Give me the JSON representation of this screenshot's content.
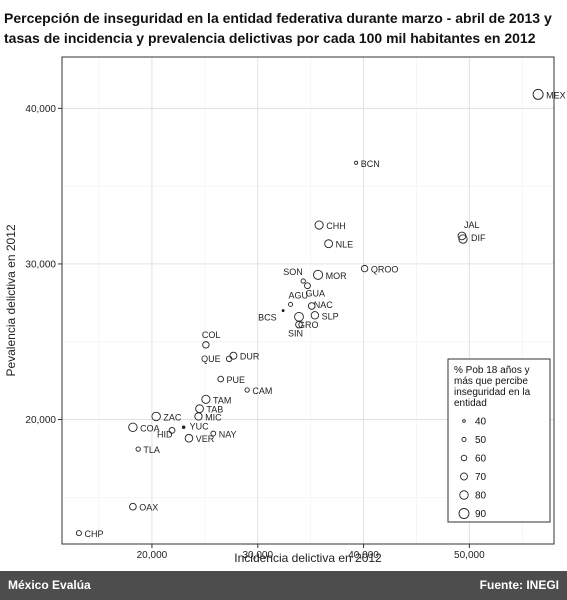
{
  "header": {
    "title_line1": "Percepción de inseguridad en la entidad federativa durante marzo - abril de 2013 y",
    "title_line2": "tasas de incidencia y prevalencia delictivas por cada 100 mil habitantes en 2012"
  },
  "footer": {
    "left": "México Evalúa",
    "right": "Fuente: INEGI"
  },
  "colors": {
    "panel_border": "#333333",
    "grid": "#e0e0e0",
    "points": "#222222",
    "footer_bg": "#4d4d4d"
  },
  "chart_data": {
    "type": "scatter",
    "title": "",
    "xlabel": "Incidencia delictiva en 2012",
    "ylabel": "Pevalencia delictiva en 2012",
    "xlim": [
      11500,
      58000
    ],
    "ylim": [
      12000,
      43300
    ],
    "x_ticks": [
      20000,
      30000,
      40000,
      50000
    ],
    "x_tick_labels": [
      "20,000",
      "30,000",
      "40,000",
      "50,000"
    ],
    "y_ticks": [
      20000,
      30000,
      40000
    ],
    "y_tick_labels": [
      "20,000",
      "30,000",
      "40,000"
    ],
    "grid": true,
    "size_legend": {
      "title_lines": [
        "% Pob 18 años y",
        "más que percibe",
        "inseguridad en la",
        "entidad"
      ],
      "values": [
        40,
        50,
        60,
        70,
        80,
        90
      ],
      "placement": "bottom-right"
    },
    "points": [
      {
        "label": "MEX",
        "x": 56500,
        "y": 40900,
        "size": 90
      },
      {
        "label": "BCN",
        "x": 39300,
        "y": 36500,
        "size": 44
      },
      {
        "label": "CHH",
        "x": 35800,
        "y": 32500,
        "size": 78
      },
      {
        "label": "NLE",
        "x": 36700,
        "y": 31300,
        "size": 76
      },
      {
        "label": "JAL",
        "x": 49300,
        "y": 31800,
        "size": 75
      },
      {
        "label": "DIF",
        "x": 49400,
        "y": 31600,
        "size": 79
      },
      {
        "label": "QROO",
        "x": 40100,
        "y": 29700,
        "size": 66
      },
      {
        "label": "SON",
        "x": 34300,
        "y": 28900,
        "size": 52
      },
      {
        "label": "MOR",
        "x": 35700,
        "y": 29300,
        "size": 84
      },
      {
        "label": "GUA",
        "x": 34700,
        "y": 28600,
        "size": 62
      },
      {
        "label": "AGU",
        "x": 33100,
        "y": 27400,
        "size": 50
      },
      {
        "label": "NAC",
        "x": 35100,
        "y": 27300,
        "size": 67
      },
      {
        "label": "BCS",
        "x": 32400,
        "y": 27000,
        "size": 36
      },
      {
        "label": "SLP",
        "x": 35400,
        "y": 26700,
        "size": 73
      },
      {
        "label": "GRO",
        "x": 33900,
        "y": 26600,
        "size": 82
      },
      {
        "label": "SIN",
        "x": 33900,
        "y": 26100,
        "size": 68
      },
      {
        "label": "COL",
        "x": 25100,
        "y": 24800,
        "size": 66
      },
      {
        "label": "DUR",
        "x": 27700,
        "y": 24100,
        "size": 70
      },
      {
        "label": "QUE",
        "x": 27300,
        "y": 23900,
        "size": 60
      },
      {
        "label": "PUE",
        "x": 26500,
        "y": 22600,
        "size": 61
      },
      {
        "label": "CAM",
        "x": 29000,
        "y": 21900,
        "size": 52
      },
      {
        "label": "TAM",
        "x": 25100,
        "y": 21300,
        "size": 78
      },
      {
        "label": "TAB",
        "x": 24500,
        "y": 20700,
        "size": 75
      },
      {
        "label": "MIC",
        "x": 24400,
        "y": 20200,
        "size": 72
      },
      {
        "label": "ZAC",
        "x": 20400,
        "y": 20200,
        "size": 80
      },
      {
        "label": "COA",
        "x": 18200,
        "y": 19500,
        "size": 80
      },
      {
        "label": "YUC",
        "x": 23000,
        "y": 19500,
        "size": 40
      },
      {
        "label": "HID",
        "x": 21900,
        "y": 19300,
        "size": 62
      },
      {
        "label": "NAY",
        "x": 25800,
        "y": 19100,
        "size": 55
      },
      {
        "label": "VER",
        "x": 23500,
        "y": 18800,
        "size": 74
      },
      {
        "label": "TLA",
        "x": 18700,
        "y": 18100,
        "size": 52
      },
      {
        "label": "OAX",
        "x": 18200,
        "y": 14400,
        "size": 68
      },
      {
        "label": "CHP",
        "x": 13100,
        "y": 12700,
        "size": 57
      }
    ]
  }
}
